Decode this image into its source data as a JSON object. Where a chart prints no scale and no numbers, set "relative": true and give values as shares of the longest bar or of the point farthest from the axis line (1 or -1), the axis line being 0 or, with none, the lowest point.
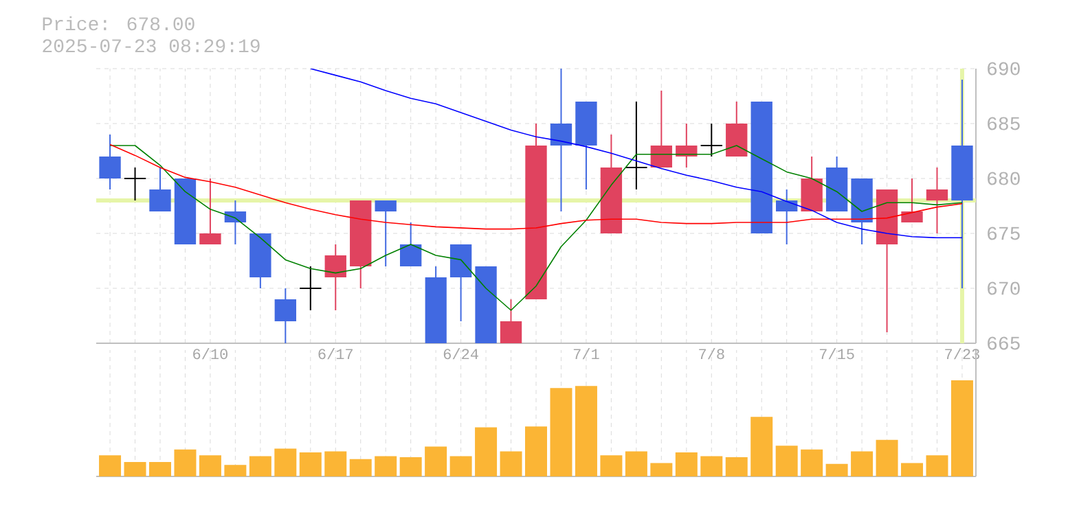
{
  "chart_data": [
    {
      "type": "candlestick",
      "title": "Price: 678.00",
      "subtitle": "2025-07-23 08:29:19",
      "categories": [
        null,
        null,
        null,
        null,
        "6/10",
        null,
        null,
        null,
        null,
        "6/17",
        null,
        null,
        null,
        null,
        "6/24",
        null,
        null,
        null,
        null,
        "7/1",
        null,
        null,
        null,
        null,
        "7/8",
        null,
        null,
        null,
        null,
        "7/15",
        null,
        null,
        null,
        null,
        "7/23"
      ],
      "ohlc": [
        [
          682,
          684,
          679,
          680
        ],
        [
          680,
          681,
          678,
          680
        ],
        [
          679,
          681,
          677,
          677
        ],
        [
          680,
          680,
          674,
          674
        ],
        [
          674,
          680,
          674,
          675
        ],
        [
          677,
          678,
          674,
          676
        ],
        [
          675,
          675,
          670,
          671
        ],
        [
          669,
          670,
          665,
          667
        ],
        [
          670,
          672,
          668,
          670
        ],
        [
          671,
          674,
          668,
          673
        ],
        [
          672,
          678,
          670,
          678
        ],
        [
          678,
          678,
          672,
          677
        ],
        [
          674,
          676,
          672,
          672
        ],
        [
          671,
          672,
          665,
          665
        ],
        [
          674,
          674,
          667,
          671
        ],
        [
          672,
          672,
          665,
          665
        ],
        [
          665,
          669,
          665,
          667
        ],
        [
          669,
          685,
          669,
          683
        ],
        [
          685,
          690,
          677,
          683
        ],
        [
          687,
          687,
          679,
          683
        ],
        [
          675,
          684,
          675,
          681
        ],
        [
          681,
          687,
          679,
          681
        ],
        [
          681,
          688,
          681,
          683
        ],
        [
          682,
          685,
          681,
          683
        ],
        [
          683,
          685,
          682,
          683
        ],
        [
          682,
          687,
          682,
          685
        ],
        [
          687,
          687,
          675,
          675
        ],
        [
          678,
          679,
          674,
          677
        ],
        [
          677,
          682,
          677,
          680
        ],
        [
          681,
          682,
          677,
          677
        ],
        [
          680,
          680,
          674,
          676
        ],
        [
          674,
          679,
          666,
          679
        ],
        [
          676,
          680,
          676,
          677
        ],
        [
          678,
          681,
          675,
          679
        ],
        [
          683,
          689,
          670,
          678
        ]
      ],
      "colors": [
        "#4169e1",
        "#000000",
        "#4169e1",
        "#4169e1",
        "#e0435f",
        "#4169e1",
        "#4169e1",
        "#4169e1",
        "#000000",
        "#e0435f",
        "#e0435f",
        "#4169e1",
        "#4169e1",
        "#4169e1",
        "#4169e1",
        "#4169e1",
        "#e0435f",
        "#e0435f",
        "#4169e1",
        "#4169e1",
        "#e0435f",
        "#000000",
        "#e0435f",
        "#e0435f",
        "#000000",
        "#e0435f",
        "#4169e1",
        "#4169e1",
        "#e0435f",
        "#4169e1",
        "#4169e1",
        "#e0435f",
        "#e0435f",
        "#e0435f",
        "#4169e1"
      ],
      "series": [
        {
          "type": "line",
          "color": "#008000",
          "values": [
            683.0,
            683.0,
            681.2,
            678.8,
            677.2,
            676.4,
            674.6,
            672.6,
            671.8,
            671.4,
            671.8,
            673.0,
            674.0,
            673.0,
            672.6,
            670.0,
            668.0,
            670.2,
            673.8,
            676.2,
            679.4,
            682.2,
            682.2,
            682.2,
            682.2,
            683.0,
            681.8,
            680.6,
            680.0,
            678.8,
            677.0,
            677.8,
            677.8,
            677.6,
            677.8
          ]
        },
        {
          "type": "line",
          "color": "#ff0000",
          "values": [
            683.1,
            682.1,
            681.0,
            680.1,
            679.7,
            679.2,
            678.5,
            677.8,
            677.2,
            676.7,
            676.3,
            676.0,
            675.8,
            675.6,
            675.5,
            675.4,
            675.4,
            675.5,
            675.9,
            676.2,
            676.3,
            676.3,
            676.0,
            675.9,
            675.9,
            676.0,
            676.0,
            676.0,
            676.3,
            676.3,
            676.3,
            676.4,
            676.9,
            677.4,
            677.7
          ]
        },
        {
          "type": "line",
          "color": "#0000ff",
          "values": [
            null,
            null,
            null,
            null,
            null,
            null,
            null,
            null,
            690.0,
            689.4,
            688.8,
            688.0,
            687.3,
            686.8,
            686.0,
            685.2,
            684.4,
            683.8,
            683.4,
            682.9,
            682.3,
            681.6,
            680.9,
            680.3,
            679.8,
            679.2,
            678.8,
            677.9,
            677.1,
            676.0,
            675.4,
            675.0,
            674.7,
            674.6,
            674.6
          ]
        }
      ],
      "ylim": [
        665,
        690
      ],
      "yticks": [
        665,
        670,
        675,
        680,
        685,
        690
      ],
      "ref_lines": [
        {
          "axis": "y",
          "value": 678,
          "color": "#e6f5a8"
        },
        {
          "axis": "x",
          "value": "7/23",
          "color": "#e6f5a8"
        }
      ],
      "grid": true
    },
    {
      "type": "bar",
      "relative": true,
      "color": "#fbb535",
      "grid": "x",
      "categories": [
        null,
        null,
        null,
        null,
        null,
        null,
        null,
        null,
        null,
        null,
        null,
        null,
        null,
        null,
        null,
        null,
        null,
        null,
        null,
        null,
        null,
        null,
        null,
        null,
        null,
        null,
        null,
        null,
        null,
        null,
        null,
        null,
        null,
        null,
        null
      ],
      "values": [
        0.22,
        0.15,
        0.15,
        0.28,
        0.22,
        0.12,
        0.21,
        0.29,
        0.25,
        0.26,
        0.18,
        0.21,
        0.2,
        0.31,
        0.21,
        0.51,
        0.26,
        0.52,
        0.92,
        0.94,
        0.22,
        0.26,
        0.14,
        0.25,
        0.21,
        0.2,
        0.62,
        0.32,
        0.28,
        0.13,
        0.26,
        0.38,
        0.14,
        0.22,
        1
      ]
    }
  ]
}
